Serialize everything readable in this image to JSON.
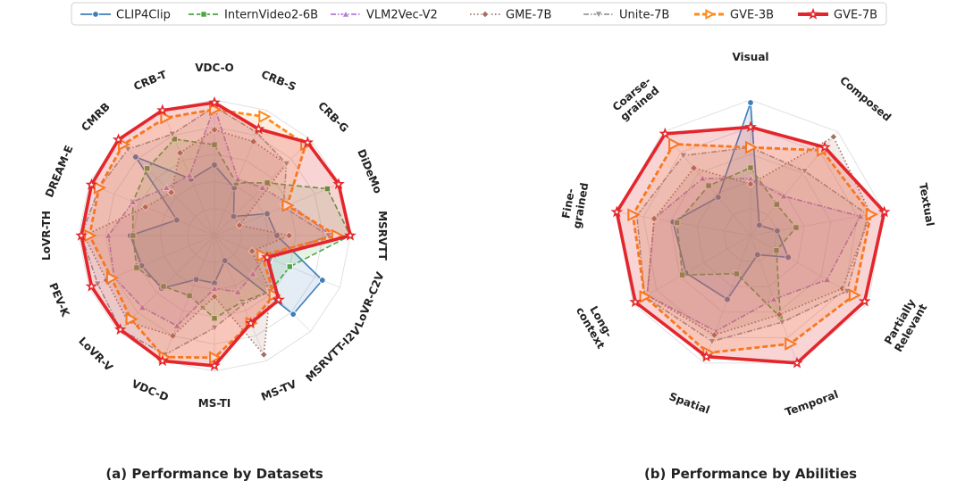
{
  "legend": {
    "entries": [
      {
        "name": "CLIP4Clip",
        "color": "#3d7ebd",
        "dash": "solid",
        "marker": "circle"
      },
      {
        "name": "InternVideo2-6B",
        "color": "#4aa642",
        "dash": "dashed",
        "marker": "square"
      },
      {
        "name": "VLM2Vec-V2",
        "color": "#b07fd3",
        "dash": "dashdot",
        "marker": "triangle"
      },
      {
        "name": "GME-7B",
        "color": "#a07060",
        "dash": "dotted",
        "marker": "diamond"
      },
      {
        "name": "Unite-7B",
        "color": "#999999",
        "dash": "dashdot",
        "marker": "triangle-down"
      },
      {
        "name": "GVE-3B",
        "color": "#ff8a1a",
        "dash": "dashed",
        "marker": "triangle-right"
      },
      {
        "name": "GVE-7B",
        "color": "#e3262b",
        "dash": "solid",
        "marker": "star"
      }
    ]
  },
  "chart_data": [
    {
      "type": "radar",
      "title": "(a) Performance by Datasets",
      "axes": [
        "VDC-O",
        "CRB-S",
        "CRB-G",
        "DiDeMo",
        "MSRVTT",
        "LoVR-C2V",
        "MSRVTT-I2V",
        "MS-TV",
        "MS-TI",
        "VDC-D",
        "LoVR-V",
        "PEV-K",
        "LoVR-TH",
        "DREAM-E",
        "CMRB",
        "CRB-T"
      ],
      "rmax": 1.0,
      "series": [
        {
          "name": "CLIP4Clip",
          "values": [
            0.52,
            0.38,
            0.2,
            0.42,
            0.46,
            0.86,
            0.82,
            0.2,
            0.35,
            0.35,
            0.55,
            0.58,
            0.62,
            0.3,
            0.82,
            0.45
          ]
        },
        {
          "name": "InternVideo2-6B",
          "values": [
            0.67,
            0.42,
            0.55,
            0.9,
            1.0,
            0.6,
            0.58,
            0.53,
            0.61,
            0.48,
            0.53,
            0.62,
            0.6,
            0.65,
            0.7,
            0.77
          ]
        },
        {
          "name": "VLM2Vec-V2",
          "values": [
            0.95,
            0.45,
            0.5,
            0.6,
            0.86,
            0.4,
            0.4,
            0.45,
            0.39,
            0.72,
            0.75,
            0.8,
            0.78,
            0.65,
            0.5,
            0.48
          ]
        },
        {
          "name": "GME-7B",
          "values": [
            0.78,
            0.75,
            0.75,
            0.2,
            0.55,
            0.3,
            0.58,
            0.95,
            0.45,
            0.8,
            0.9,
            0.86,
            0.96,
            0.55,
            0.45,
            0.66
          ]
        },
        {
          "name": "Unite-7B",
          "values": [
            0.95,
            0.82,
            0.75,
            0.55,
            0.84,
            0.45,
            0.58,
            0.55,
            0.68,
            0.95,
            0.98,
            0.93,
            0.98,
            0.92,
            0.9,
            0.81
          ]
        },
        {
          "name": "GVE-3B",
          "values": [
            0.93,
            0.95,
            0.95,
            0.58,
            0.9,
            0.38,
            0.62,
            0.7,
            0.9,
            0.97,
            0.87,
            0.82,
            0.92,
            0.92,
            0.95,
            0.94
          ]
        },
        {
          "name": "GVE-7B",
          "values": [
            0.98,
            0.85,
            0.97,
            0.99,
            1.0,
            0.42,
            0.67,
            0.7,
            0.96,
            1.0,
            0.98,
            0.98,
            0.98,
            0.98,
            1.0,
            1.0
          ]
        }
      ]
    },
    {
      "type": "radar",
      "title": "(b) Performance by Abilities",
      "axes": [
        "Visual",
        "Composed",
        "Textual",
        "Partially Relevant",
        "Temporal",
        "Spatial",
        "Long-context",
        "Fine-grained",
        "Coarse-grained"
      ],
      "axis_label_lines": [
        [
          "Visual"
        ],
        [
          "Composed"
        ],
        [
          "Textual"
        ],
        [
          "Partially",
          "Relevant"
        ],
        [
          "Temporal"
        ],
        [
          "Spatial"
        ],
        [
          "Long-",
          "context"
        ],
        [
          "Fine-",
          "grained"
        ],
        [
          "Coarse-",
          "grained"
        ]
      ],
      "rmax": 1.0,
      "series": [
        {
          "name": "CLIP4Clip",
          "values": [
            0.98,
            0.1,
            0.2,
            0.32,
            0.15,
            0.5,
            0.55,
            0.58,
            0.37
          ]
        },
        {
          "name": "InternVideo2-6B",
          "values": [
            0.5,
            0.3,
            0.34,
            0.22,
            0.64,
            0.3,
            0.58,
            0.55,
            0.48
          ]
        },
        {
          "name": "VLM2Vec-V2",
          "values": [
            0.42,
            0.38,
            0.82,
            0.65,
            0.5,
            0.75,
            0.88,
            0.72,
            0.55
          ]
        },
        {
          "name": "GME-7B",
          "values": [
            0.38,
            0.95,
            0.9,
            0.78,
            0.62,
            0.78,
            0.88,
            0.72,
            0.65
          ]
        },
        {
          "name": "Unite-7B",
          "values": [
            0.65,
            0.62,
            0.88,
            0.82,
            0.68,
            0.83,
            0.9,
            0.85,
            0.77
          ]
        },
        {
          "name": "GVE-3B",
          "values": [
            0.65,
            0.82,
            0.9,
            0.88,
            0.85,
            0.92,
            0.9,
            0.88,
            0.88
          ]
        },
        {
          "name": "GVE-7B",
          "values": [
            0.8,
            0.85,
            1.0,
            0.97,
            1.0,
            0.95,
            0.98,
            1.0,
            0.98
          ]
        }
      ]
    }
  ]
}
